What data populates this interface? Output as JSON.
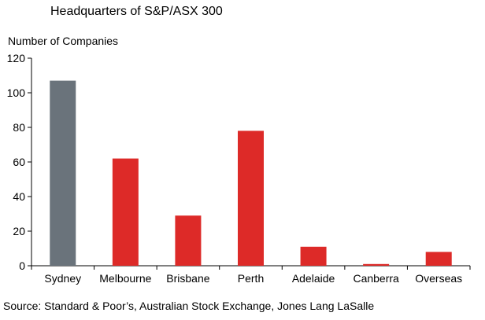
{
  "chart_data": {
    "type": "bar",
    "title": "Headquarters of S&P/ASX 300",
    "ylabel": "Number of Companies",
    "xlabel": "",
    "categories": [
      "Sydney",
      "Melbourne",
      "Brisbane",
      "Perth",
      "Adelaide",
      "Canberra",
      "Overseas"
    ],
    "values": [
      107,
      62,
      29,
      78,
      11,
      1,
      8
    ],
    "ylim": [
      0,
      120
    ],
    "yticks": [
      0,
      20,
      40,
      60,
      80,
      100,
      120
    ],
    "colors": [
      "#6a737b",
      "#dd2a28",
      "#dd2a28",
      "#dd2a28",
      "#dd2a28",
      "#dd2a28",
      "#dd2a28"
    ],
    "grid": false,
    "legend": "none"
  },
  "source": "Source: Standard & Poor’s, Australian Stock Exchange, Jones Lang LaSalle"
}
